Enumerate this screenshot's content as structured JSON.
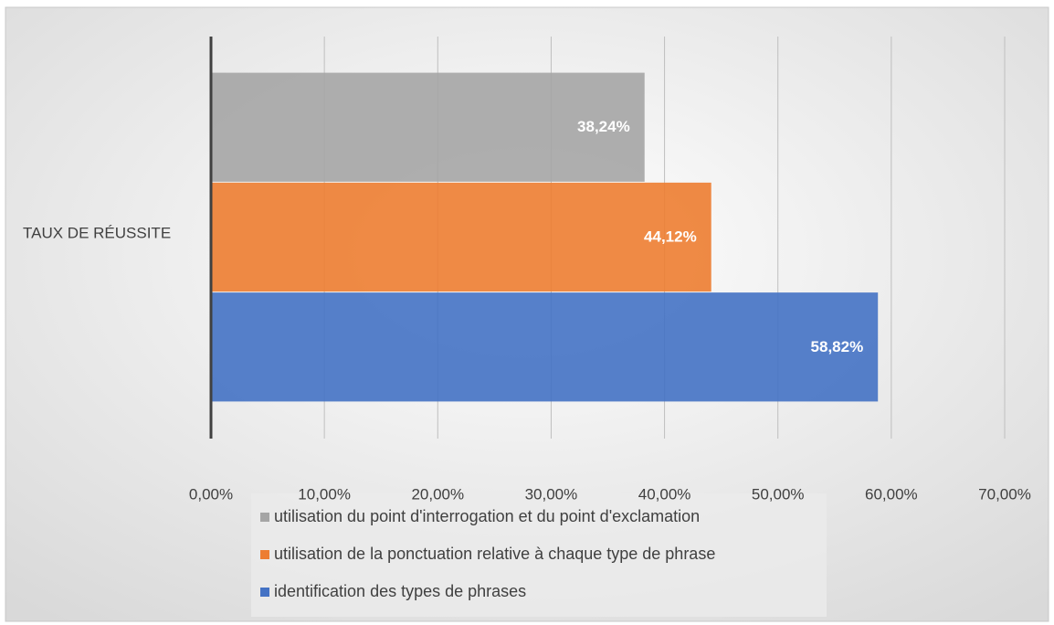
{
  "chart_data": {
    "type": "bar",
    "orientation": "horizontal",
    "categories": [
      "TAUX DE RÉUSSITE"
    ],
    "series": [
      {
        "name": "utilisation du point d'interrogation et du point d'exclamation",
        "color": "#a5a5a5",
        "values": [
          38.24
        ],
        "value_labels": [
          "38,24%"
        ]
      },
      {
        "name": "utilisation de la ponctuation relative à chaque type de phrase",
        "color": "#ed7d31",
        "values": [
          44.12
        ],
        "value_labels": [
          "44,12%"
        ]
      },
      {
        "name": "identification des types de phrases",
        "color": "#4472c4",
        "values": [
          58.82
        ],
        "value_labels": [
          "58,82%"
        ]
      }
    ],
    "xlim": [
      0,
      70
    ],
    "xticks": [
      {
        "value": 0,
        "label": "0,00%"
      },
      {
        "value": 10,
        "label": "10,00%"
      },
      {
        "value": 20,
        "label": "20,00%"
      },
      {
        "value": 30,
        "label": "30,00%"
      },
      {
        "value": 40,
        "label": "40,00%"
      },
      {
        "value": 50,
        "label": "50,00%"
      },
      {
        "value": 60,
        "label": "60,00%"
      },
      {
        "value": 70,
        "label": "70,00%"
      }
    ],
    "grid": true,
    "legend": "bottom"
  }
}
